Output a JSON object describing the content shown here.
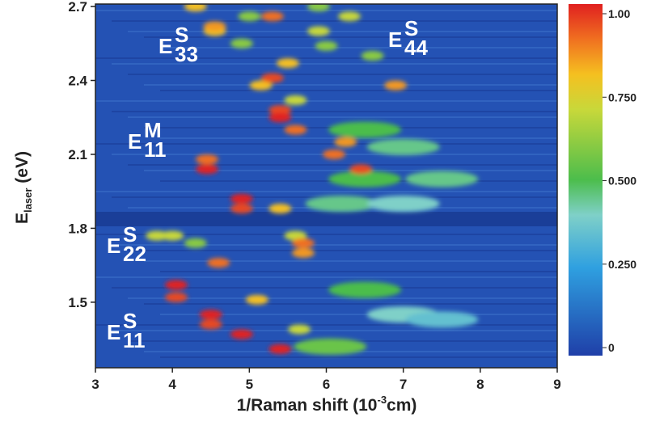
{
  "chart_data": {
    "type": "heatmap",
    "xlabel": {
      "text": "1/Raman shift (10",
      "sup": "-3",
      "tail": "cm)"
    },
    "ylabel": {
      "text": "E",
      "sub": "laser",
      "tail": " (eV)"
    },
    "xlim": [
      3,
      9
    ],
    "xticks": [
      3,
      4,
      5,
      6,
      7,
      8,
      9
    ],
    "ylim": [
      1.234,
      2.71
    ],
    "yticks": [
      1.5,
      1.8,
      2.1,
      2.4,
      2.7
    ],
    "clim": [
      -0.024,
      1.029
    ],
    "cticks": [
      0,
      {
        "value": 0.25,
        "label": "0.250"
      },
      {
        "value": 0.5,
        "label": "0.500"
      },
      {
        "value": 0.75,
        "label": "0.750"
      },
      {
        "value": 1,
        "label": "1.00"
      }
    ],
    "annotations": [
      {
        "text": "E",
        "sup": "S",
        "sub": "33"
      },
      {
        "text": "E",
        "sup": "S",
        "sub": "44"
      },
      {
        "text": "E",
        "sup": "M",
        "sub": "11"
      },
      {
        "text": "E",
        "sup": "S",
        "sub": "22"
      },
      {
        "text": "E",
        "sup": "S",
        "sub": "11"
      }
    ],
    "x": [
      6.5,
      7.0,
      7.5,
      6.5,
      7.5,
      6.2,
      7.0,
      6.5,
      7.0,
      6.05,
      6.6,
      5.9,
      6.0,
      4.9,
      5.0,
      6.3,
      5.9,
      4.3,
      5.65,
      5.6,
      3.8,
      4.0,
      4.3,
      5.1,
      5.15,
      5.5,
      5.6,
      4.55,
      4.3,
      5.4,
      4.9,
      6.9,
      6.25,
      4.05,
      4.5,
      4.6,
      5.7,
      5.7,
      5.6,
      6.1,
      4.45,
      5.3,
      4.55,
      4.05,
      4.5,
      4.9,
      5.4,
      4.9,
      4.45,
      6.45,
      5.4,
      5.4,
      5.3
    ],
    "y": [
      1.55,
      1.45,
      1.43,
      2.0,
      2.0,
      1.9,
      1.9,
      2.2,
      2.13,
      1.32,
      2.5,
      2.7,
      2.54,
      2.55,
      2.66,
      2.66,
      2.6,
      1.74,
      1.39,
      2.32,
      1.77,
      1.77,
      2.7,
      1.51,
      2.38,
      2.47,
      1.77,
      2.6,
      2.7,
      1.88,
      1.37,
      2.38,
      2.15,
      1.52,
      1.41,
      1.66,
      1.7,
      1.74,
      2.2,
      2.1,
      2.08,
      2.66,
      2.62,
      1.57,
      1.45,
      1.88,
      2.28,
      1.92,
      2.04,
      2.04,
      2.25,
      1.31,
      2.41
    ],
    "values": [
      0.5,
      0.4,
      0.35,
      0.5,
      0.45,
      0.45,
      0.4,
      0.5,
      0.45,
      0.55,
      0.6,
      0.6,
      0.6,
      0.6,
      0.6,
      0.7,
      0.7,
      0.6,
      0.7,
      0.7,
      0.7,
      0.7,
      0.8,
      0.8,
      0.8,
      0.8,
      0.7,
      0.8,
      0.8,
      0.8,
      1.0,
      0.85,
      0.85,
      0.95,
      0.95,
      0.9,
      0.85,
      0.9,
      0.9,
      0.9,
      0.9,
      0.9,
      0.85,
      1.0,
      1.0,
      0.95,
      0.95,
      1.0,
      1.0,
      0.95,
      1.0,
      1.0,
      0.95
    ]
  }
}
